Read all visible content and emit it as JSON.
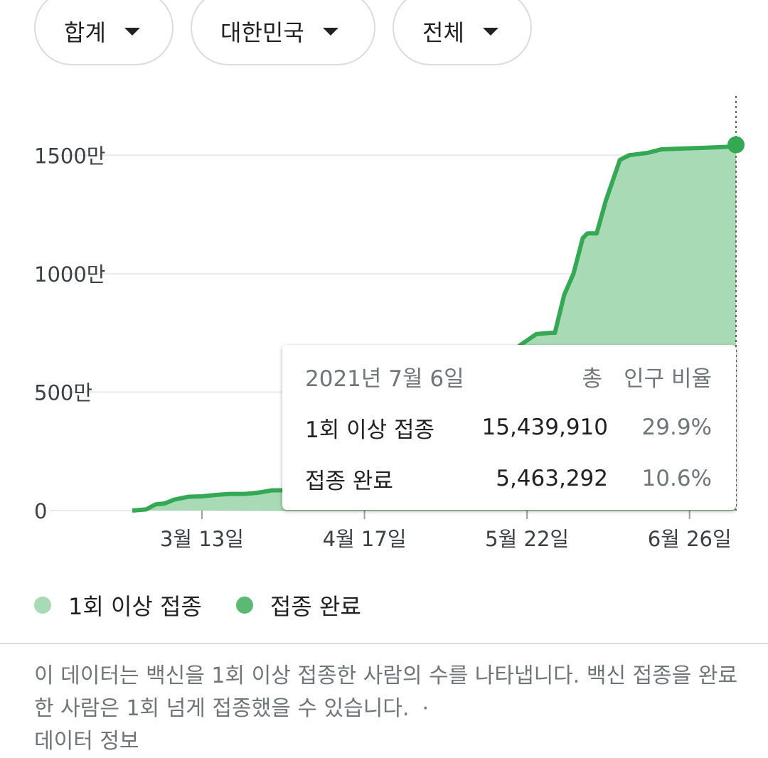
{
  "filters": [
    {
      "label": "합계"
    },
    {
      "label": "대한민국"
    },
    {
      "label": "전체"
    }
  ],
  "chart_data": {
    "type": "area",
    "unit_note": "values in 만 (10,000 people)",
    "y_ticks": [
      {
        "value": 0,
        "label": "0"
      },
      {
        "value": 500,
        "label": "500만"
      },
      {
        "value": 1000,
        "label": "1000만"
      },
      {
        "value": 1500,
        "label": "1500만"
      }
    ],
    "ylim": [
      0,
      1750
    ],
    "xlim": [
      "2021-02-26",
      "2021-07-06"
    ],
    "x_ticks": [
      {
        "date": "2021-03-13",
        "label": "3월 13일"
      },
      {
        "date": "2021-04-17",
        "label": "4월 17일"
      },
      {
        "date": "2021-05-22",
        "label": "5월 22일"
      },
      {
        "date": "2021-06-26",
        "label": "6월 26일"
      }
    ],
    "series": [
      {
        "name": "1회 이상 접종",
        "color": "#a8dab5",
        "x": [
          "2021-02-26",
          "2021-03-01",
          "2021-03-03",
          "2021-03-05",
          "2021-03-07",
          "2021-03-10",
          "2021-03-13",
          "2021-03-16",
          "2021-03-19",
          "2021-03-22",
          "2021-03-25",
          "2021-03-28",
          "2021-03-31",
          "2021-04-03",
          "2021-04-06",
          "2021-05-24",
          "2021-05-27",
          "2021-05-28",
          "2021-05-30",
          "2021-06-01",
          "2021-06-03",
          "2021-06-04",
          "2021-06-06",
          "2021-06-08",
          "2021-06-11",
          "2021-06-13",
          "2021-06-17",
          "2021-06-20",
          "2021-06-24",
          "2021-06-30",
          "2021-07-05",
          "2021-07-06"
        ],
        "values": [
          0,
          5,
          26,
          30,
          46,
          58,
          60,
          66,
          70,
          70,
          75,
          85,
          86,
          95,
          95,
          745,
          750,
          750,
          910,
          1000,
          1150,
          1170,
          1170,
          1310,
          1480,
          1500,
          1510,
          1525,
          1528,
          1532,
          1536,
          1544
        ]
      },
      {
        "name": "접종 완료",
        "color": "#34a853",
        "x": [
          "2021-02-26",
          "2021-03-13",
          "2021-04-06",
          "2021-05-27",
          "2021-07-06"
        ],
        "values": [
          0,
          0,
          5,
          18,
          546
        ]
      }
    ],
    "tooltip": {
      "date": "2021년 7월 6일",
      "col_total": "총",
      "col_ratio": "인구 비율",
      "rows": [
        {
          "label": "1회 이상 접종",
          "total": "15,439,910",
          "ratio": "29.9%"
        },
        {
          "label": "접종 완료",
          "total": "5,463,292",
          "ratio": "10.6%"
        }
      ]
    },
    "legend": [
      {
        "label": "1회 이상 접종",
        "color": "#a8dab5"
      },
      {
        "label": "접종 완료",
        "color": "#5bb974"
      }
    ],
    "grid": true
  },
  "note": {
    "text": "이 데이터는 백신을 1회 이상 접종한 사람의 수를 나타냅니다. 백신 접종을 완료한 사람은 1회 넘게 접종했을 수 있습니다.",
    "separator": "·",
    "link": "데이터 정보"
  }
}
